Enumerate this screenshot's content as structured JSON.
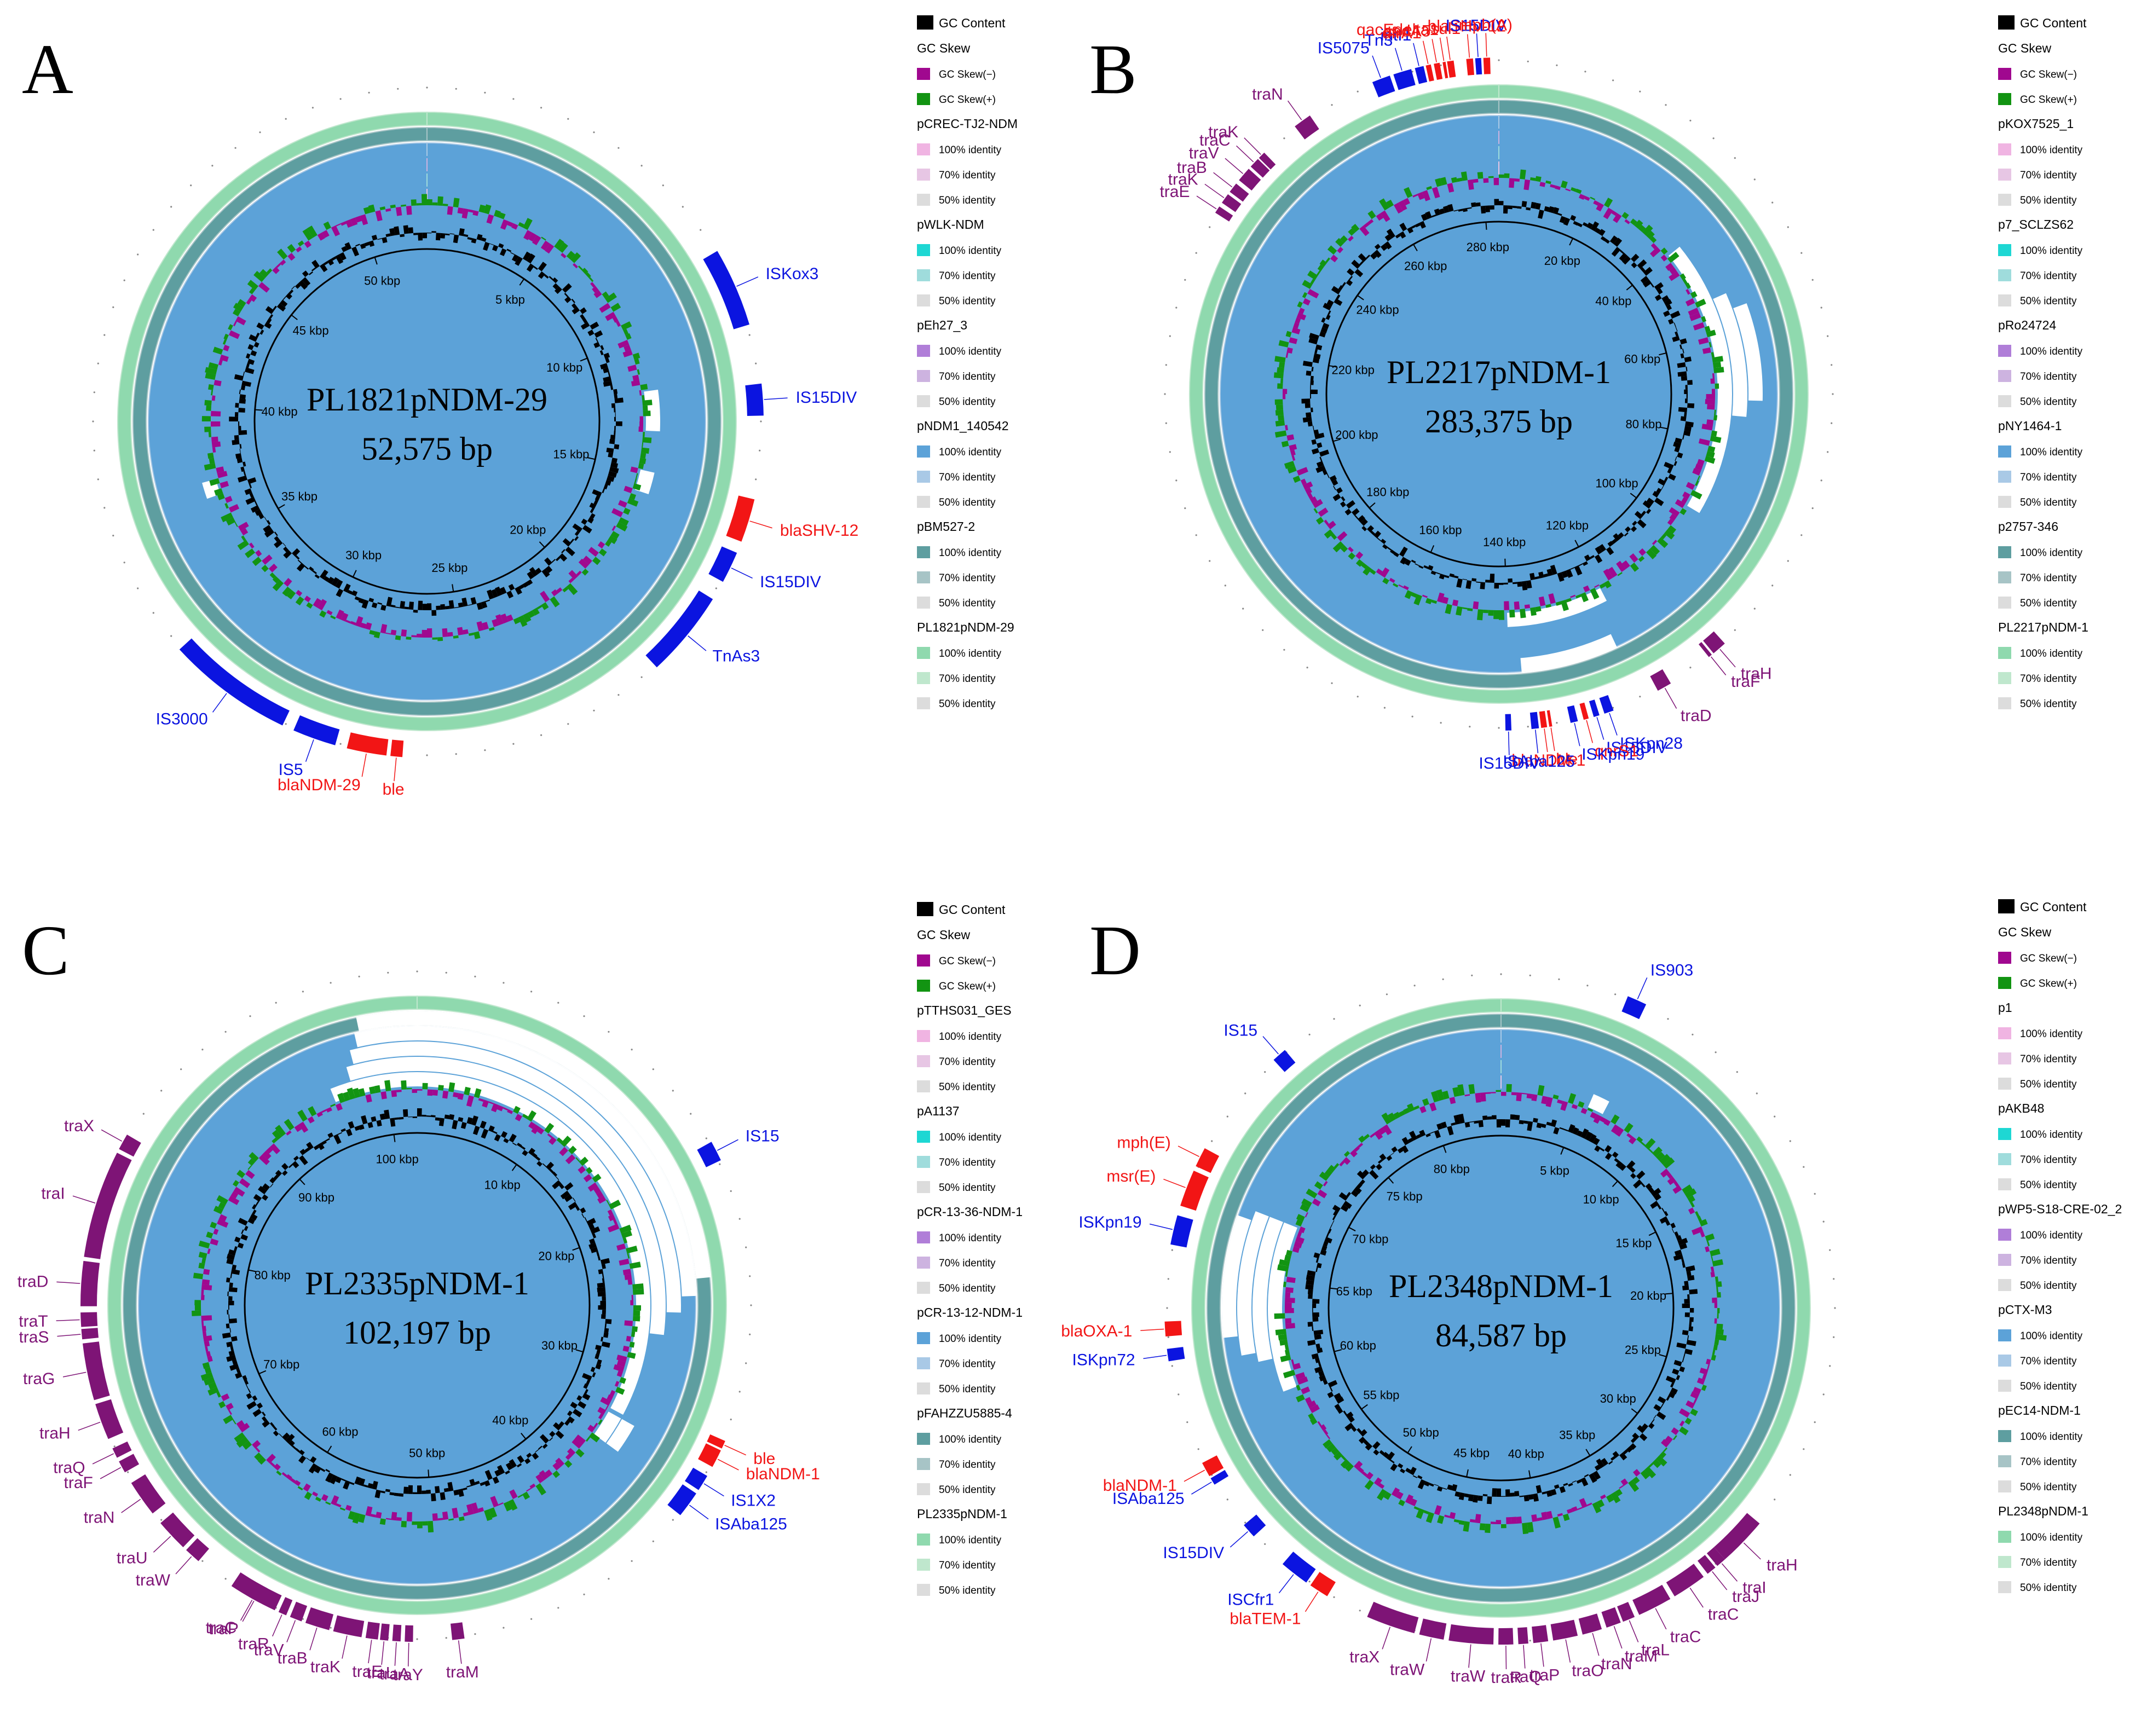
{
  "figure": {
    "colors": {
      "gc_content": "#000000",
      "gc_skew_neg": "#a0088f",
      "gc_skew_pos": "#129412",
      "ring_colors": [
        "#f0b4e2",
        "#1ed7d3",
        "#b07ed8",
        "#5ca2d8",
        "#5e9ea0",
        "#8fd9ae"
      ],
      "ring_light": [
        "#e7c6e4",
        "#9fdcdc",
        "#cdb3e0",
        "#a9c9e6",
        "#a7c4c6",
        "#bfe7cd"
      ],
      "identity_50": "#dcdcdc",
      "is_element": "#0b14e0",
      "resistance_gene": "#f21515",
      "transfer_gene": "#7e1476"
    },
    "legend_labels": {
      "gc_content": "GC Content",
      "gc_skew": "GC Skew",
      "skew_neg": "GC Skew(−)",
      "skew_pos": "GC Skew(+)",
      "identity_levels": [
        "100% identity",
        "70% identity",
        "50% identity"
      ]
    },
    "panels": [
      {
        "letter": "A",
        "name": "PL1821pNDM-29",
        "size_label": "52,575 bp",
        "length_kbp": 52.575,
        "tick_labels": [
          "5 kbp",
          "10 kbp",
          "15 kbp",
          "20 kbp",
          "25 kbp",
          "30 kbp",
          "35 kbp",
          "40 kbp",
          "45 kbp",
          "50 kbp"
        ],
        "rings": [
          "pCREC-TJ2-NDM",
          "pWLK-NDM",
          "pEh27_3",
          "pNDM1_140542",
          "pBM527-2",
          "PL1821pNDM-29"
        ],
        "gaps": [
          {
            "ring": 0,
            "start_kbp": 12.0,
            "end_kbp": 13.5
          },
          {
            "ring": 0,
            "start_kbp": 15.0,
            "end_kbp": 15.8
          },
          {
            "ring": 0,
            "start_kbp": 36.6,
            "end_kbp": 37.2
          }
        ],
        "genes": [
          {
            "label": "ISKox3",
            "type": "is",
            "start_kbp": 8.7,
            "end_kbp": 10.7
          },
          {
            "label": "IS15DIV",
            "type": "is",
            "start_kbp": 12.2,
            "end_kbp": 13.0
          },
          {
            "label": "blaSHV-12",
            "type": "res",
            "start_kbp": 15.1,
            "end_kbp": 16.2
          },
          {
            "label": "IS15DIV",
            "type": "is",
            "start_kbp": 16.5,
            "end_kbp": 17.3
          },
          {
            "label": "TnAs3",
            "type": "is",
            "start_kbp": 17.8,
            "end_kbp": 20.0
          },
          {
            "label": "ble",
            "type": "res",
            "start_kbp": 26.9,
            "end_kbp": 27.2
          },
          {
            "label": "blaNDM-29",
            "type": "res",
            "start_kbp": 27.3,
            "end_kbp": 28.3
          },
          {
            "label": "IS5",
            "type": "is",
            "start_kbp": 28.6,
            "end_kbp": 29.7
          },
          {
            "label": "IS3000",
            "type": "is",
            "start_kbp": 30.0,
            "end_kbp": 33.2
          }
        ]
      },
      {
        "letter": "B",
        "name": "PL2217pNDM-1",
        "size_label": "283,375 bp",
        "length_kbp": 283.375,
        "tick_labels": [
          "20 kbp",
          "40 kbp",
          "60 kbp",
          "80 kbp",
          "100 kbp",
          "120 kbp",
          "140 kbp",
          "160 kbp",
          "180 kbp",
          "200 kbp",
          "220 kbp",
          "240 kbp",
          "260 kbp",
          "280 kbp"
        ],
        "rings": [
          "pKOX7525_1",
          "p7_SCLZS62",
          "pRo24724",
          "pNY1464-1",
          "p2757-346",
          "PL2217pNDM-1"
        ],
        "gaps": [
          {
            "ring": 0,
            "start_kbp": 40.0,
            "end_kbp": 95.0
          },
          {
            "ring": 0,
            "start_kbp": 120.0,
            "end_kbp": 140.0
          },
          {
            "ring": 1,
            "start_kbp": 52.0,
            "end_kbp": 75.0
          },
          {
            "ring": 2,
            "start_kbp": 55.0,
            "end_kbp": 72.0
          },
          {
            "ring": 3,
            "start_kbp": 122.0,
            "end_kbp": 138.0
          }
        ],
        "genes": [
          {
            "label": "IS5075",
            "type": "is",
            "start_kbp": 266.0,
            "end_kbp": 268.5
          },
          {
            "label": "Tn3",
            "type": "is",
            "start_kbp": 269.0,
            "end_kbp": 271.5
          },
          {
            "label": "intI1",
            "type": "is",
            "start_kbp": 272.0,
            "end_kbp": 273.2
          },
          {
            "label": "dfrA1",
            "type": "res",
            "start_kbp": 273.5,
            "end_kbp": 274.2
          },
          {
            "label": "aadA5",
            "type": "res",
            "start_kbp": 274.6,
            "end_kbp": 275.4
          },
          {
            "label": "qacEdelta1",
            "type": "res",
            "start_kbp": 275.8,
            "end_kbp": 276.2
          },
          {
            "label": "sul1",
            "type": "res",
            "start_kbp": 276.4,
            "end_kbp": 277.3
          },
          {
            "label": "blaSHV-12",
            "type": "res",
            "start_kbp": 279.0,
            "end_kbp": 279.9
          },
          {
            "label": "IS15DIV",
            "type": "is",
            "start_kbp": 280.2,
            "end_kbp": 281.0
          },
          {
            "label": "mph(A)",
            "type": "res",
            "start_kbp": 281.3,
            "end_kbp": 282.2
          },
          {
            "label": "traH",
            "type": "tra",
            "start_kbp": 108.5,
            "end_kbp": 110.5
          },
          {
            "label": "traF",
            "type": "tra",
            "start_kbp": 110.8,
            "end_kbp": 111.3
          },
          {
            "label": "traD",
            "type": "tra",
            "start_kbp": 117.5,
            "end_kbp": 119.5
          },
          {
            "label": "ISKpn28",
            "type": "is",
            "start_kbp": 126.0,
            "end_kbp": 127.3
          },
          {
            "label": "IS15DIV",
            "type": "is",
            "start_kbp": 128.0,
            "end_kbp": 128.8
          },
          {
            "label": "qnrS1",
            "type": "res",
            "start_kbp": 129.5,
            "end_kbp": 130.2
          },
          {
            "label": "ISKpn19",
            "type": "is",
            "start_kbp": 131.0,
            "end_kbp": 132.0
          },
          {
            "label": "ble",
            "type": "res",
            "start_kbp": 134.5,
            "end_kbp": 134.9
          },
          {
            "label": "blaNDM-1",
            "type": "res",
            "start_kbp": 135.2,
            "end_kbp": 136.0
          },
          {
            "label": "ISAba125",
            "type": "is",
            "start_kbp": 136.3,
            "end_kbp": 137.3
          },
          {
            "label": "IS15DIV",
            "type": "is",
            "start_kbp": 140.0,
            "end_kbp": 140.8
          },
          {
            "label": "traE",
            "type": "tra",
            "start_kbp": 238.2,
            "end_kbp": 239.2
          },
          {
            "label": "traK",
            "type": "tra",
            "start_kbp": 239.8,
            "end_kbp": 241.2
          },
          {
            "label": "traB",
            "type": "tra",
            "start_kbp": 241.6,
            "end_kbp": 243.0
          },
          {
            "label": "traV",
            "type": "tra",
            "start_kbp": 243.6,
            "end_kbp": 245.6
          },
          {
            "label": "traC",
            "type": "tra",
            "start_kbp": 246.0,
            "end_kbp": 247.4
          },
          {
            "label": "traK",
            "type": "tra",
            "start_kbp": 247.6,
            "end_kbp": 248.6
          },
          {
            "label": "traN",
            "type": "tra",
            "start_kbp": 254.0,
            "end_kbp": 256.5
          }
        ]
      },
      {
        "letter": "C",
        "name": "PL2335pNDM-1",
        "size_label": "102,197 bp",
        "length_kbp": 102.197,
        "tick_labels": [
          "10 kbp",
          "20 kbp",
          "30 kbp",
          "40 kbp",
          "50 kbp",
          "60 kbp",
          "70 kbp",
          "80 kbp",
          "90 kbp",
          "100 kbp"
        ],
        "rings": [
          "pTTHS031_GES",
          "pA1137",
          "pCR-13-36-NDM-1",
          "pCR-13-12-NDM-1",
          "pFAHZZU5885-4",
          "PL2335pNDM-1"
        ],
        "gaps": [
          {
            "ring": 0,
            "start_kbp": 96.0,
            "end_kbp": 102.197
          },
          {
            "ring": 0,
            "start_kbp": 0.0,
            "end_kbp": 33.5
          },
          {
            "ring": 1,
            "start_kbp": 97.5,
            "end_kbp": 102.197
          },
          {
            "ring": 1,
            "start_kbp": 0.0,
            "end_kbp": 27.5
          },
          {
            "ring": 2,
            "start_kbp": 98.0,
            "end_kbp": 102.197
          },
          {
            "ring": 2,
            "start_kbp": 0.0,
            "end_kbp": 26.0
          },
          {
            "ring": 3,
            "start_kbp": 98.5,
            "end_kbp": 102.197
          },
          {
            "ring": 3,
            "start_kbp": 0.0,
            "end_kbp": 25.0
          },
          {
            "ring": 4,
            "start_kbp": 98.8,
            "end_kbp": 102.197
          },
          {
            "ring": 4,
            "start_kbp": 0.0,
            "end_kbp": 24.0
          },
          {
            "ring": 0,
            "start_kbp": 33.8,
            "end_kbp": 35.8
          },
          {
            "ring": 1,
            "start_kbp": 33.8,
            "end_kbp": 35.8
          }
        ],
        "genes": [
          {
            "label": "IS15",
            "type": "is",
            "start_kbp": 17.3,
            "end_kbp": 18.3
          },
          {
            "label": "ble",
            "type": "res",
            "start_kbp": 32.3,
            "end_kbp": 32.7
          },
          {
            "label": "blaNDM-1",
            "type": "res",
            "start_kbp": 32.8,
            "end_kbp": 33.7
          },
          {
            "label": "IS1X2",
            "type": "is",
            "start_kbp": 34.2,
            "end_kbp": 35.0
          },
          {
            "label": "ISAba125",
            "type": "is",
            "start_kbp": 35.2,
            "end_kbp": 36.5
          },
          {
            "label": "traM",
            "type": "tra",
            "start_kbp": 48.8,
            "end_kbp": 49.4
          },
          {
            "label": "traY",
            "type": "tra",
            "start_kbp": 51.3,
            "end_kbp": 51.7
          },
          {
            "label": "traA",
            "type": "tra",
            "start_kbp": 51.9,
            "end_kbp": 52.3
          },
          {
            "label": "traL",
            "type": "tra",
            "start_kbp": 52.5,
            "end_kbp": 52.9
          },
          {
            "label": "traE",
            "type": "tra",
            "start_kbp": 53.0,
            "end_kbp": 53.6
          },
          {
            "label": "traK",
            "type": "tra",
            "start_kbp": 53.8,
            "end_kbp": 55.2
          },
          {
            "label": "traB",
            "type": "tra",
            "start_kbp": 55.4,
            "end_kbp": 56.6
          },
          {
            "label": "traV",
            "type": "tra",
            "start_kbp": 56.8,
            "end_kbp": 57.4
          },
          {
            "label": "traR",
            "type": "tra",
            "start_kbp": 57.6,
            "end_kbp": 58.0
          },
          {
            "label": "traC",
            "type": "tra",
            "start_kbp": 58.2,
            "end_kbp": 60.6
          },
          {
            "label": "traP",
            "type": "tra",
            "start_kbp": 59.0,
            "end_kbp": 59.6
          },
          {
            "label": "traW",
            "type": "tra",
            "start_kbp": 62.6,
            "end_kbp": 63.4
          },
          {
            "label": "traU",
            "type": "tra",
            "start_kbp": 63.6,
            "end_kbp": 65.2
          },
          {
            "label": "traN",
            "type": "tra",
            "start_kbp": 65.8,
            "end_kbp": 67.6
          },
          {
            "label": "traF",
            "type": "tra",
            "start_kbp": 68.2,
            "end_kbp": 68.8
          },
          {
            "label": "traQ",
            "type": "tra",
            "start_kbp": 69.0,
            "end_kbp": 69.5
          },
          {
            "label": "traH",
            "type": "tra",
            "start_kbp": 70.0,
            "end_kbp": 71.8
          },
          {
            "label": "traG",
            "type": "tra",
            "start_kbp": 72.0,
            "end_kbp": 74.8
          },
          {
            "label": "traS",
            "type": "tra",
            "start_kbp": 75.0,
            "end_kbp": 75.5
          },
          {
            "label": "traT",
            "type": "tra",
            "start_kbp": 75.6,
            "end_kbp": 76.3
          },
          {
            "label": "traD",
            "type": "tra",
            "start_kbp": 76.6,
            "end_kbp": 78.8
          },
          {
            "label": "traI",
            "type": "tra",
            "start_kbp": 79.0,
            "end_kbp": 84.3
          },
          {
            "label": "traX",
            "type": "tra",
            "start_kbp": 84.5,
            "end_kbp": 85.3
          }
        ]
      },
      {
        "letter": "D",
        "name": "PL2348pNDM-1",
        "size_label": "84,587 bp",
        "length_kbp": 84.587,
        "tick_labels": [
          "5 kbp",
          "10 kbp",
          "15 kbp",
          "20 kbp",
          "25 kbp",
          "30 kbp",
          "35 kbp",
          "40 kbp",
          "45 kbp",
          "50 kbp",
          "55 kbp",
          "60 kbp",
          "65 kbp",
          "70 kbp",
          "75 kbp",
          "80 kbp"
        ],
        "rings": [
          "p1",
          "pAKB48",
          "pWP5-S18-CRE-02_2",
          "pCTX-M3",
          "pEC14-NDM-1",
          "PL2348pNDM-1"
        ],
        "gaps": [
          {
            "ring": 0,
            "start_kbp": 5.5,
            "end_kbp": 6.5
          },
          {
            "ring": 0,
            "start_kbp": 58.5,
            "end_kbp": 68.5
          },
          {
            "ring": 1,
            "start_kbp": 60.5,
            "end_kbp": 68.5
          },
          {
            "ring": 2,
            "start_kbp": 61.0,
            "end_kbp": 68.5
          },
          {
            "ring": 3,
            "start_kbp": 62.0,
            "end_kbp": 68.0
          }
        ],
        "genes": [
          {
            "label": "IS903",
            "type": "is",
            "start_kbp": 5.2,
            "end_kbp": 6.0
          },
          {
            "label": "traH",
            "type": "tra",
            "start_kbp": 30.5,
            "end_kbp": 32.5
          },
          {
            "label": "traI",
            "type": "tra",
            "start_kbp": 32.5,
            "end_kbp": 32.9
          },
          {
            "label": "traJ",
            "type": "tra",
            "start_kbp": 33.0,
            "end_kbp": 33.4
          },
          {
            "label": "traC",
            "type": "tra",
            "start_kbp": 33.6,
            "end_kbp": 35.0
          },
          {
            "label": "traC",
            "type": "tra",
            "start_kbp": 35.2,
            "end_kbp": 36.6
          },
          {
            "label": "traL",
            "type": "tra",
            "start_kbp": 36.8,
            "end_kbp": 37.3
          },
          {
            "label": "traM",
            "type": "tra",
            "start_kbp": 37.4,
            "end_kbp": 38.0
          },
          {
            "label": "traN",
            "type": "tra",
            "start_kbp": 38.2,
            "end_kbp": 39.0
          },
          {
            "label": "traO",
            "type": "tra",
            "start_kbp": 39.2,
            "end_kbp": 40.2
          },
          {
            "label": "traP",
            "type": "tra",
            "start_kbp": 40.4,
            "end_kbp": 41.0
          },
          {
            "label": "traQ",
            "type": "tra",
            "start_kbp": 41.2,
            "end_kbp": 41.6
          },
          {
            "label": "traR",
            "type": "tra",
            "start_kbp": 41.8,
            "end_kbp": 42.4
          },
          {
            "label": "traW",
            "type": "tra",
            "start_kbp": 42.6,
            "end_kbp": 44.4
          },
          {
            "label": "traW",
            "type": "tra",
            "start_kbp": 44.6,
            "end_kbp": 45.6
          },
          {
            "label": "traX",
            "type": "tra",
            "start_kbp": 45.8,
            "end_kbp": 47.8
          },
          {
            "label": "blaTEM-1",
            "type": "res",
            "start_kbp": 49.6,
            "end_kbp": 50.4
          },
          {
            "label": "ISCfr1",
            "type": "is",
            "start_kbp": 50.6,
            "end_kbp": 51.8
          },
          {
            "label": "IS15DIV",
            "type": "is",
            "start_kbp": 53.4,
            "end_kbp": 54.0
          },
          {
            "label": "ISAba125",
            "type": "is",
            "start_kbp": 56.0,
            "end_kbp": 56.3
          },
          {
            "label": "blaNDM-1",
            "type": "res",
            "start_kbp": 56.4,
            "end_kbp": 57.0
          },
          {
            "label": "ISKpn72",
            "type": "is",
            "start_kbp": 61.3,
            "end_kbp": 61.8
          },
          {
            "label": "blaOXA-1",
            "type": "res",
            "start_kbp": 62.3,
            "end_kbp": 62.9
          },
          {
            "label": "ISKpn19",
            "type": "is",
            "start_kbp": 66.0,
            "end_kbp": 67.2
          },
          {
            "label": "msr(E)",
            "type": "res",
            "start_kbp": 67.6,
            "end_kbp": 69.1
          },
          {
            "label": "mph(E)",
            "type": "res",
            "start_kbp": 69.3,
            "end_kbp": 70.1
          },
          {
            "label": "IS15",
            "type": "is",
            "start_kbp": 74.6,
            "end_kbp": 75.2
          }
        ]
      }
    ]
  }
}
